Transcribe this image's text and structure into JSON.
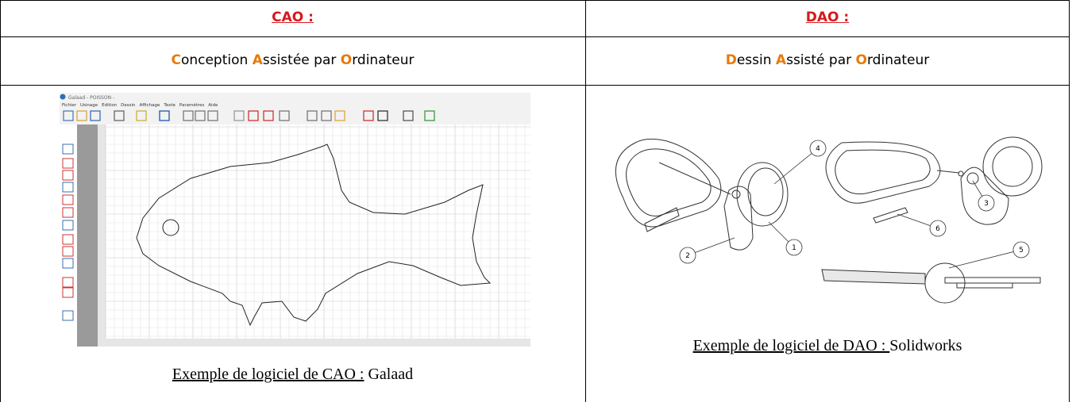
{
  "table": {
    "rows": [
      {
        "cells": [
          {
            "text": "CAO :"
          },
          {
            "text": "DAO :"
          }
        ]
      },
      {
        "cells": [
          {
            "parts": [
              "C",
              "onception ",
              "A",
              "ssistée par ",
              "O",
              "rdinateur"
            ]
          },
          {
            "parts": [
              "D",
              "essin ",
              "A",
              "ssisté par ",
              "O",
              "rdinateur"
            ]
          }
        ]
      },
      {
        "cells": [
          {
            "image": {
              "title": "Galaad - POISSON -",
              "menu": [
                "Fichier",
                "Usinage",
                "Edition",
                "Dessin",
                "Affichage",
                "Texte",
                "Paramètres",
                "Aide"
              ]
            },
            "caption": [
              "Exemple de logiciel de CAO :",
              " Galaad"
            ]
          },
          {
            "image": {
              "callouts": [
                "1",
                "2",
                "3",
                "4",
                "5",
                "6"
              ]
            },
            "caption": [
              "Exemple de logiciel de DAO : ",
              "Solidworks"
            ]
          }
        ]
      }
    ]
  }
}
